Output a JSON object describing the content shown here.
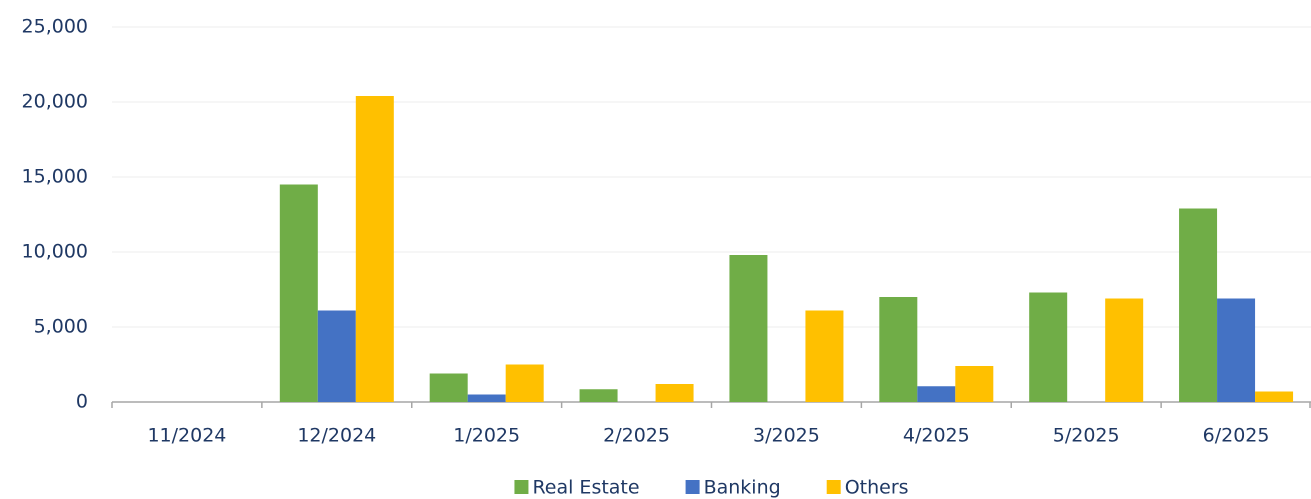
{
  "chart_data": {
    "type": "bar",
    "categories": [
      "11/2024",
      "12/2024",
      "1/2025",
      "2/2025",
      "3/2025",
      "4/2025",
      "5/2025",
      "6/2025"
    ],
    "series": [
      {
        "name": "Real Estate",
        "color": "#70ad47",
        "values": [
          0,
          14500,
          1900,
          850,
          9800,
          7000,
          7300,
          12900
        ]
      },
      {
        "name": "Banking",
        "color": "#4472c4",
        "values": [
          0,
          6100,
          500,
          0,
          0,
          1050,
          0,
          6900
        ]
      },
      {
        "name": "Others",
        "color": "#ffc000",
        "values": [
          0,
          20400,
          2500,
          1200,
          6100,
          2400,
          6900,
          700
        ]
      }
    ],
    "ylim": [
      0,
      25000
    ],
    "yticks": [
      0,
      {
        "value": 5000,
        "label": "5,000"
      },
      {
        "value": 10000,
        "label": "10,000"
      },
      {
        "value": 15000,
        "label": "15,000"
      },
      {
        "value": 20000,
        "label": "20,000"
      },
      {
        "value": 25000,
        "label": "25,000"
      }
    ],
    "grid": true,
    "legend": "bottom"
  }
}
